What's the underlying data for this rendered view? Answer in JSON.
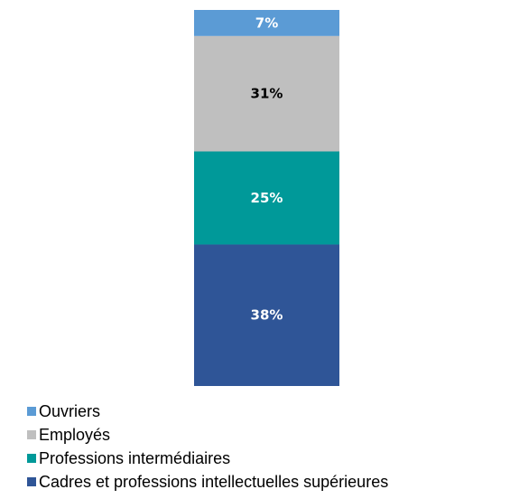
{
  "chart_data": {
    "type": "bar",
    "stacked": true,
    "categories": [
      ""
    ],
    "series": [
      {
        "name": "Cadres et professions intellectuelles supérieures",
        "values": [
          38
        ],
        "label": "38%",
        "color": "#2f5597",
        "label_color": "#ffffff"
      },
      {
        "name": "Professions intermédiaires",
        "values": [
          25
        ],
        "label": "25%",
        "color": "#009999",
        "label_color": "#ffffff"
      },
      {
        "name": "Employés",
        "values": [
          31
        ],
        "label": "31%",
        "color": "#bfbfbf",
        "label_color": "#000000"
      },
      {
        "name": "Ouvriers",
        "values": [
          7
        ],
        "label": "7%",
        "color": "#5b9bd5",
        "label_color": "#ffffff"
      }
    ],
    "title": "",
    "xlabel": "",
    "ylabel": "",
    "ylim": [
      0,
      101
    ],
    "grid": false,
    "legend_position": "bottom-left",
    "legend_order": [
      "Ouvriers",
      "Employés",
      "Professions intermédiaires",
      "Cadres et professions intellectuelles supérieures"
    ]
  }
}
